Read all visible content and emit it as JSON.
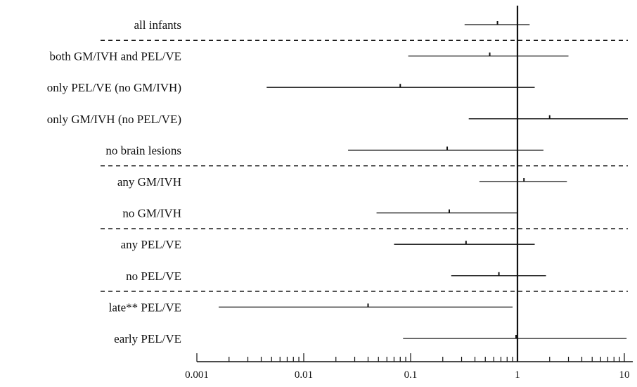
{
  "chart_data": {
    "type": "forest",
    "x_scale": "log",
    "xlim": [
      0.001,
      12
    ],
    "reference_line": 1,
    "x_tick_labels": [
      {
        "value": 0.001,
        "text": "0.001"
      },
      {
        "value": 0.01,
        "text": "0.01"
      },
      {
        "value": 0.1,
        "text": "0.1"
      },
      {
        "value": 1,
        "text": "1"
      },
      {
        "value": 10,
        "text": "10"
      }
    ],
    "rows": [
      {
        "label": "all infants",
        "estimate": 0.65,
        "low": 0.32,
        "high": 1.3
      },
      {
        "label": "both GM/IVH  and PEL/VE",
        "estimate": 0.55,
        "low": 0.095,
        "high": 3.0
      },
      {
        "label": "only PEL/VE (no GM/IVH)",
        "estimate": 0.08,
        "low": 0.0045,
        "high": 1.45
      },
      {
        "label": "only GM/IVH (no PEL/VE)",
        "estimate": 2.0,
        "low": 0.35,
        "high": 12
      },
      {
        "label": "no brain lesions",
        "estimate": 0.22,
        "low": 0.026,
        "high": 1.75
      },
      {
        "label": "any GM/IVH",
        "estimate": 1.15,
        "low": 0.44,
        "high": 2.9
      },
      {
        "label": "no GM/IVH",
        "estimate": 0.23,
        "low": 0.048,
        "high": 1.0
      },
      {
        "label": "any PEL/VE",
        "estimate": 0.33,
        "low": 0.07,
        "high": 1.45
      },
      {
        "label": "no PEL/VE",
        "estimate": 0.67,
        "low": 0.24,
        "high": 1.85
      },
      {
        "label": "late** PEL/VE",
        "estimate": 0.04,
        "low": 0.0016,
        "high": 0.9
      },
      {
        "label": "early PEL/VE",
        "estimate": 0.97,
        "low": 0.085,
        "high": 10.5
      }
    ],
    "separators_after_rows": [
      0,
      4,
      6,
      8
    ]
  }
}
